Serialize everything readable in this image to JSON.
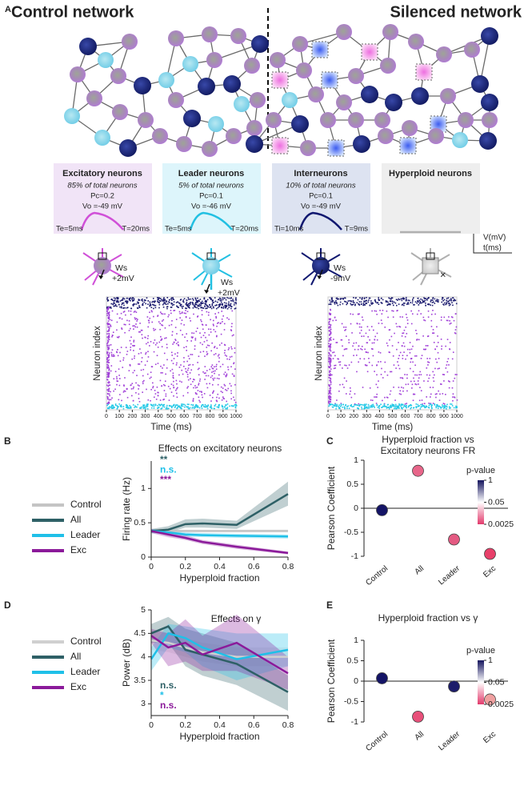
{
  "panel_a": {
    "label": "A",
    "control_title": "Control network",
    "silenced_title": "Silenced network",
    "neuron_types": [
      {
        "name": "Excitatory neurons",
        "share": "85% of total neurons",
        "pc": "Pc=0.2",
        "vo": "Vo =-49 mV",
        "rise": "Te=5ms",
        "decay": "T=20ms",
        "weight": "Ws",
        "weight_value": "+2mV"
      },
      {
        "name": "Leader neurons",
        "share": "5% of total neurons",
        "pc": "Pc=0.1",
        "vo": "Vo =-46 mV",
        "rise": "Te=5ms",
        "decay": "T=20ms",
        "weight": "Ws",
        "weight_value": "+2mV"
      },
      {
        "name": "Interneurons",
        "share": "10% of total neurons",
        "pc": "Pc=0.1",
        "vo": "Vo =-49 mV",
        "rise": "Ti=10ms",
        "decay": "T=9ms",
        "weight": "Ws",
        "weight_value": "-9mV"
      },
      {
        "name": "Hyperploid neurons",
        "mark": "×"
      }
    ],
    "scale_v": "V(mV)",
    "scale_t": "t(ms)"
  },
  "chart_data": [
    {
      "type": "raster",
      "x_label": "Time (ms)",
      "y_label": "Neuron index",
      "xlim": [
        0,
        1000
      ],
      "xticks": [
        0,
        100,
        200,
        300,
        400,
        500,
        600,
        700,
        800,
        900,
        1000
      ]
    },
    {
      "type": "raster",
      "x_label": "Time (ms)",
      "y_label": "Neuron index",
      "xlim": [
        0,
        1000
      ],
      "xticks": [
        0,
        100,
        200,
        300,
        400,
        500,
        600,
        700,
        800,
        900,
        1000
      ]
    },
    {
      "type": "line",
      "label": "B",
      "title": "Effects on excitatory neurons",
      "x_label": "Hyperploid fraction",
      "y_label": "Firing rate (Hz)",
      "x": [
        0,
        0.1,
        0.2,
        0.3,
        0.5,
        0.8
      ],
      "xlim": [
        0,
        0.8
      ],
      "xticks": [
        0,
        0.2,
        0.4,
        0.6,
        0.8
      ],
      "ylim": [
        0,
        1.4
      ],
      "yticks": [
        0,
        0.5,
        1
      ],
      "series": [
        {
          "name": "Control",
          "color": "#c4c4c4",
          "values": [
            0.38,
            0.38,
            0.38,
            0.38,
            0.38,
            0.38
          ],
          "upper": [
            0.4,
            0.4,
            0.4,
            0.4,
            0.4,
            0.4
          ],
          "lower": [
            0.36,
            0.36,
            0.36,
            0.36,
            0.36,
            0.36
          ]
        },
        {
          "name": "All",
          "color": "#2e6066",
          "values": [
            0.38,
            0.4,
            0.48,
            0.49,
            0.47,
            0.92
          ],
          "upper": [
            0.41,
            0.45,
            0.55,
            0.56,
            0.53,
            1.1
          ],
          "lower": [
            0.35,
            0.36,
            0.43,
            0.43,
            0.41,
            0.75
          ]
        },
        {
          "name": "Leader",
          "color": "#1fc0e8",
          "values": [
            0.38,
            0.36,
            0.33,
            0.32,
            0.31,
            0.3
          ],
          "upper": [
            0.41,
            0.39,
            0.36,
            0.35,
            0.34,
            0.33
          ],
          "lower": [
            0.35,
            0.33,
            0.3,
            0.29,
            0.28,
            0.27
          ]
        },
        {
          "name": "Exc",
          "color": "#8b1a9a",
          "values": [
            0.38,
            0.33,
            0.28,
            0.22,
            0.15,
            0.06
          ],
          "upper": [
            0.41,
            0.38,
            0.32,
            0.25,
            0.18,
            0.08
          ],
          "lower": [
            0.35,
            0.29,
            0.25,
            0.19,
            0.12,
            0.04
          ]
        }
      ],
      "annotations": [
        {
          "text": "**",
          "color": "#2e6066"
        },
        {
          "text": "n.s.",
          "color": "#1fc0e8"
        },
        {
          "text": "***",
          "color": "#8b1a9a"
        }
      ]
    },
    {
      "type": "dot",
      "label": "C",
      "title": [
        "Hyperploid fraction vs",
        "Excitatory neurons FR"
      ],
      "y_label": "Pearson Coefficient",
      "categories": [
        "Control",
        "All",
        "Leader",
        "Exc"
      ],
      "values": [
        -0.04,
        0.78,
        -0.65,
        -0.95
      ],
      "colors": [
        "#141466",
        "#e8668a",
        "#e45a82",
        "#e8406a"
      ],
      "ylim": [
        -1,
        1
      ],
      "yticks": [
        -1,
        -0.5,
        0,
        0.5,
        1
      ],
      "colorbar": {
        "label": "p-value",
        "scale": "log",
        "lim": [
          0.0025,
          1
        ],
        "ticks": [
          1,
          0.05,
          0.0025
        ],
        "colors": [
          "#e23a6c",
          "#ffffff",
          "#14145e"
        ]
      }
    },
    {
      "type": "line",
      "label": "D",
      "title": "Effects on γ",
      "x_label": "Hyperploid fraction",
      "y_label": "Power (dB)",
      "x": [
        0,
        0.1,
        0.2,
        0.3,
        0.5,
        0.8
      ],
      "xlim": [
        0,
        0.8
      ],
      "xticks": [
        0,
        0.2,
        0.4,
        0.6,
        0.8
      ],
      "ylim": [
        2.75,
        5
      ],
      "yticks": [
        3,
        3.5,
        4,
        4.5,
        5
      ],
      "series": [
        {
          "name": "Control",
          "color": "#d0d0d0",
          "values": [
            4.35,
            4.3,
            4.2,
            4.1,
            4.0,
            4.0
          ],
          "upper": [
            4.55,
            4.5,
            4.4,
            4.3,
            4.2,
            4.2
          ],
          "lower": [
            4.15,
            4.1,
            4.0,
            3.9,
            3.8,
            3.8
          ]
        },
        {
          "name": "All",
          "color": "#2e6066",
          "values": [
            4.5,
            4.65,
            4.15,
            4.05,
            3.85,
            3.25
          ],
          "upper": [
            4.7,
            4.85,
            4.6,
            4.5,
            4.3,
            3.6
          ],
          "lower": [
            4.3,
            4.3,
            3.8,
            3.6,
            3.4,
            2.85
          ]
        },
        {
          "name": "Leader",
          "color": "#1fc0e8",
          "values": [
            3.95,
            4.5,
            4.4,
            4.2,
            3.95,
            4.15
          ],
          "upper": [
            4.2,
            4.7,
            4.65,
            4.6,
            4.5,
            4.5
          ],
          "lower": [
            3.7,
            4.2,
            4.1,
            3.8,
            3.5,
            3.8
          ]
        },
        {
          "name": "Exc",
          "color": "#8b1a9a",
          "values": [
            4.45,
            4.2,
            4.3,
            4.05,
            4.3,
            3.65
          ],
          "upper": [
            4.6,
            4.5,
            4.8,
            4.45,
            4.9,
            4.0
          ],
          "lower": [
            4.3,
            3.8,
            3.9,
            3.7,
            3.7,
            3.3
          ]
        }
      ],
      "annotations": [
        {
          "text": "n.s.",
          "color": "#2e6066"
        },
        {
          "text": "*",
          "color": "#1fc0e8"
        },
        {
          "text": "n.s.",
          "color": "#8b1a9a"
        }
      ]
    },
    {
      "type": "dot",
      "label": "E",
      "title": [
        "Hyperploid fraction vs γ"
      ],
      "y_label": "Pearson Coefficient",
      "categories": [
        "Control",
        "All",
        "Leader",
        "Exc"
      ],
      "values": [
        0.07,
        -0.87,
        -0.13,
        -0.45
      ],
      "colors": [
        "#141466",
        "#e8507a",
        "#1c1c6a",
        "#f0a0a0"
      ],
      "ylim": [
        -1,
        1
      ],
      "yticks": [
        -1,
        -0.5,
        0,
        0.5,
        1
      ],
      "colorbar": {
        "label": "p-value",
        "scale": "log",
        "lim": [
          0.0025,
          1
        ],
        "ticks": [
          1,
          0.05,
          0.0025
        ],
        "colors": [
          "#e23a6c",
          "#ffffff",
          "#14145e"
        ]
      }
    }
  ]
}
